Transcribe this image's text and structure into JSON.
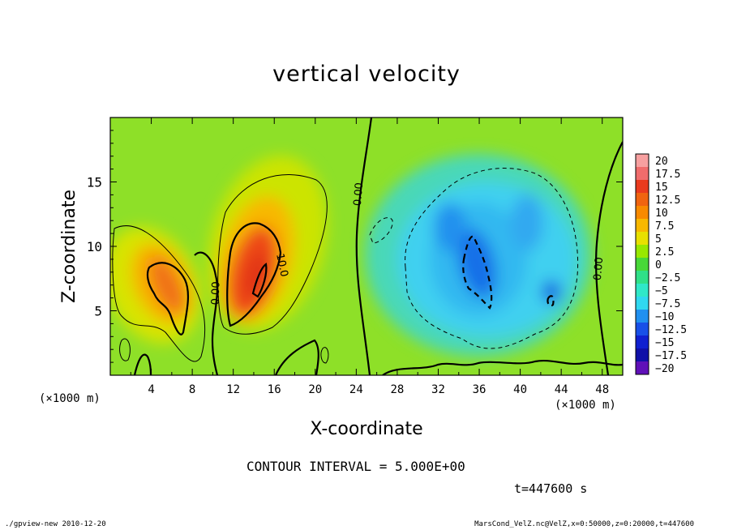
{
  "chart_data": {
    "type": "heatmap",
    "title": "vertical velocity",
    "xlabel": "X-coordinate",
    "ylabel": "Z-coordinate",
    "x_unit": "(×1000 m)",
    "z_unit": "(×1000 m)",
    "xlim": [
      0,
      50
    ],
    "ylim": [
      0,
      20
    ],
    "x_ticks": [
      "4",
      "8",
      "12",
      "16",
      "20",
      "24",
      "28",
      "32",
      "36",
      "40",
      "44",
      "48"
    ],
    "y_ticks": [
      "5",
      "10",
      "15"
    ],
    "contour_interval_text": "CONTOUR INTERVAL = 5.000E+00",
    "contour_labels": [
      "0.00",
      "10.0",
      "0.00",
      "0.00"
    ],
    "colorbar": {
      "labels": [
        "20",
        "17.5",
        "15",
        "12.5",
        "10",
        "7.5",
        "5",
        "2.5",
        "0",
        "−2.5",
        "−5",
        "−7.5",
        "−10",
        "−12.5",
        "−15",
        "−17.5",
        "−20"
      ],
      "colors": [
        "#f7a0a0",
        "#f06c6c",
        "#ea3b1e",
        "#f06410",
        "#f88a00",
        "#f8b800",
        "#e8e000",
        "#98e800",
        "#48d838",
        "#30e088",
        "#30e8c8",
        "#30d8f0",
        "#2090f0",
        "#1850e8",
        "#1020d0",
        "#1010a8",
        "#6010b8"
      ]
    }
  },
  "annotations": {
    "time": "t=447600 s",
    "footer_left": "./gpview-new  2010-12-20",
    "footer_right": "MarsCond_VelZ.nc@VelZ,x=0:50000,z=0:20000,t=447600"
  }
}
